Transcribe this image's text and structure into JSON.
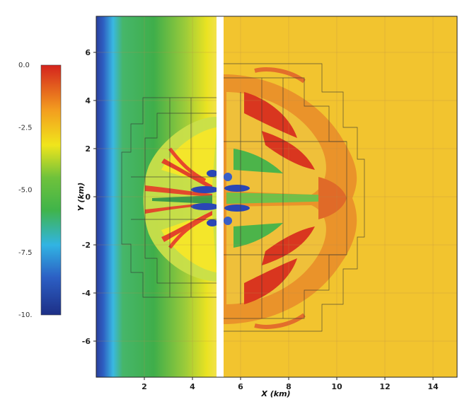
{
  "chart_data": {
    "type": "heatmap",
    "title": "",
    "xlabel": "X (km)",
    "ylabel": "Y (km)",
    "xlim": [
      0,
      15
    ],
    "ylim": [
      -7.5,
      7.5
    ],
    "x_ticks": [
      2,
      4,
      6,
      8,
      10,
      12,
      14
    ],
    "y_ticks": [
      -6,
      -4,
      -2,
      0,
      2,
      4,
      6
    ],
    "tick_labels": {
      "x": [
        "2",
        "4",
        "6",
        "8",
        "10",
        "12",
        "14"
      ],
      "y": [
        "-6",
        "-4",
        "-2",
        "0",
        "2",
        "4",
        "6"
      ]
    },
    "colorbar": {
      "range": [
        -10,
        0
      ],
      "ticks": [
        0.0,
        -2.5,
        -5.0,
        -7.5,
        -10.0
      ],
      "tick_labels": [
        "0.0",
        "-2.5",
        "-5.0",
        "-7.5",
        "-10."
      ],
      "colors": [
        "#2338a0",
        "#27a6e3",
        "#3fae4a",
        "#f2e41c",
        "#d62a1e"
      ],
      "placement": "left"
    },
    "domain_split_x": 5.25,
    "left_domain": "horizontal gradient (blue to yellow) with symmetric lobed structure",
    "right_domain_background": "#f2c42f",
    "grid": true,
    "amr_patches": true
  }
}
